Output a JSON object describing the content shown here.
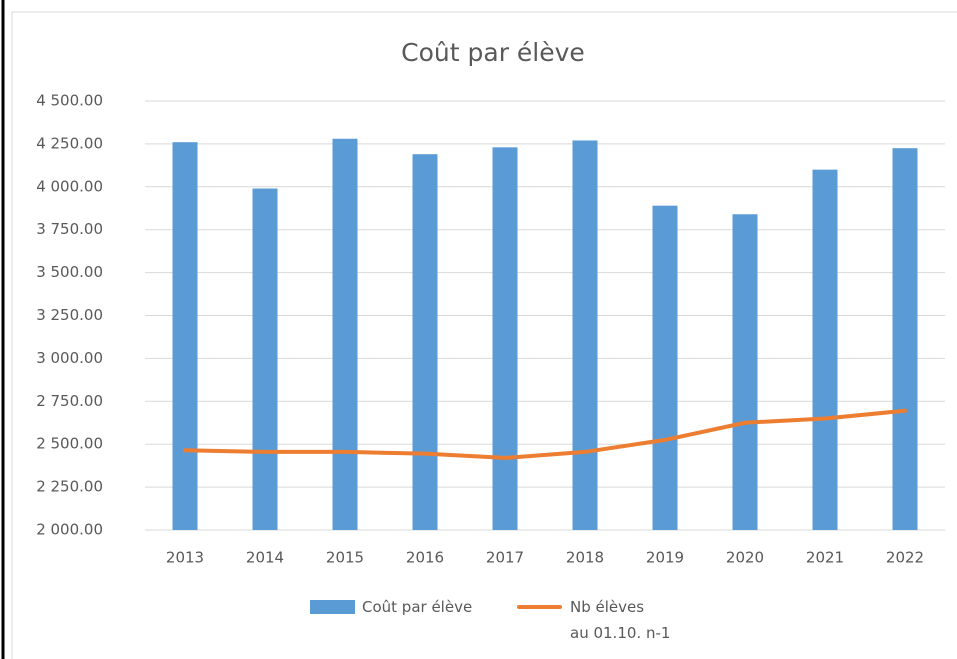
{
  "chart_data": {
    "type": "combo",
    "title": "Coût par élève",
    "categories": [
      "2013",
      "2014",
      "2015",
      "2016",
      "2017",
      "2018",
      "2019",
      "2020",
      "2021",
      "2022"
    ],
    "series": [
      {
        "name": "Coût par élève",
        "type": "bar",
        "color": "#5b9bd5",
        "values": [
          4260,
          3990,
          4280,
          4190,
          4230,
          4270,
          3890,
          3840,
          4100,
          4225
        ]
      },
      {
        "name": "Nb élèves\nau 01.10. n-1",
        "type": "line",
        "color": "#ed7d31",
        "values": [
          2465,
          2455,
          2455,
          2445,
          2420,
          2455,
          2525,
          2625,
          2650,
          2695
        ]
      }
    ],
    "ylim": [
      2000,
      4500
    ],
    "yticks": [
      {
        "value": 2000,
        "label": "2 000.00"
      },
      {
        "value": 2250,
        "label": "2 250.00"
      },
      {
        "value": 2500,
        "label": "2 500.00"
      },
      {
        "value": 2750,
        "label": "2 750.00"
      },
      {
        "value": 3000,
        "label": "3 000.00"
      },
      {
        "value": 3250,
        "label": "3 250.00"
      },
      {
        "value": 3500,
        "label": "3 500.00"
      },
      {
        "value": 3750,
        "label": "3 750.00"
      },
      {
        "value": 4000,
        "label": "4 000.00"
      },
      {
        "value": 4250,
        "label": "4 250.00"
      },
      {
        "value": 4500,
        "label": "4 500.00"
      }
    ],
    "grid": true
  }
}
